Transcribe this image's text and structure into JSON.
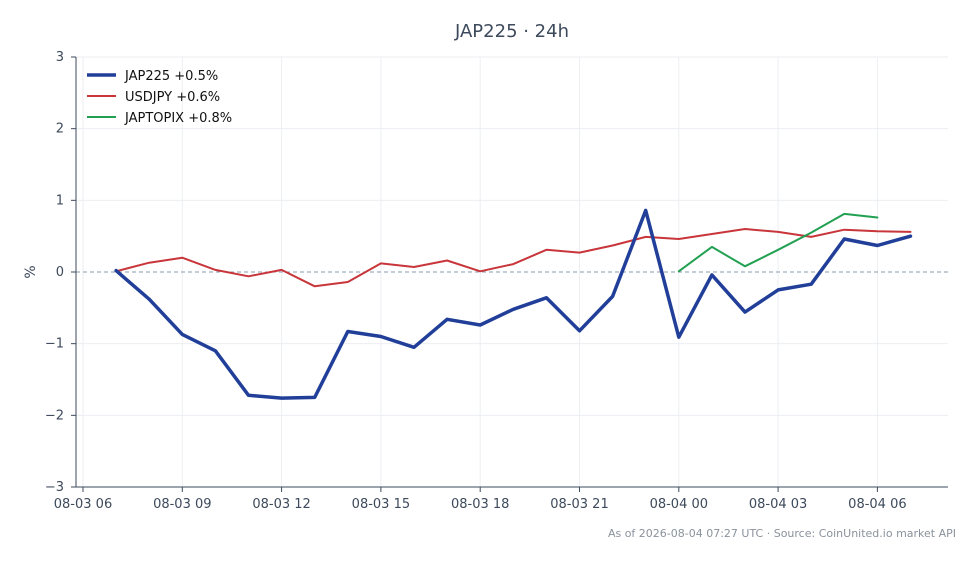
{
  "chart_data": {
    "type": "line",
    "title": "JAP225 · 24h",
    "xlabel": "",
    "ylabel": "%",
    "ylim": [
      -3,
      3
    ],
    "yticks": [
      "3",
      "2",
      "1",
      "0",
      "−1",
      "−2",
      "−3"
    ],
    "ytick_values": [
      3,
      2,
      1,
      0,
      -1,
      -2,
      -3
    ],
    "xlim": [
      "08-03 06",
      "08-04 08"
    ],
    "xticks": [
      "08-03 06",
      "08-03 09",
      "08-03 12",
      "08-03 15",
      "08-03 18",
      "08-03 21",
      "08-04 00",
      "08-04 03",
      "08-04 06"
    ],
    "xtick_hours": [
      0,
      3,
      6,
      9,
      12,
      15,
      18,
      21,
      24
    ],
    "grid": true,
    "zero_line": true,
    "legend_position": "top-left",
    "series": [
      {
        "name": "JAP225 +0.5%",
        "color": "#213f99",
        "x": [
          "08-03 07",
          "08-03 08",
          "08-03 09",
          "08-03 10",
          "08-03 11",
          "08-03 12",
          "08-03 13",
          "08-03 14",
          "08-03 15",
          "08-03 16",
          "08-03 17",
          "08-03 18",
          "08-03 19",
          "08-03 20",
          "08-03 21",
          "08-03 22",
          "08-03 23",
          "08-04 00",
          "08-04 01",
          "08-04 02",
          "08-04 03",
          "08-04 04",
          "08-04 05",
          "08-04 06",
          "08-04 07"
        ],
        "x_hours": [
          1,
          2,
          3,
          4,
          5,
          6,
          7,
          8,
          9,
          10,
          11,
          12,
          13,
          14,
          15,
          16,
          17,
          18,
          19,
          20,
          21,
          22,
          23,
          24,
          25
        ],
        "values": [
          0.02,
          -0.38,
          -0.87,
          -1.1,
          -1.72,
          -1.76,
          -1.75,
          -0.83,
          -0.9,
          -1.05,
          -0.66,
          -0.74,
          -0.52,
          -0.36,
          -0.82,
          -0.34,
          0.86,
          -0.91,
          -0.04,
          -0.56,
          -0.25,
          -0.17,
          0.46,
          0.37,
          0.5
        ]
      },
      {
        "name": "USDJPY +0.6%",
        "color": "#c8353a",
        "x": [
          "08-03 07",
          "08-03 08",
          "08-03 09",
          "08-03 10",
          "08-03 11",
          "08-03 12",
          "08-03 13",
          "08-03 14",
          "08-03 15",
          "08-03 16",
          "08-03 17",
          "08-03 18",
          "08-03 19",
          "08-03 20",
          "08-03 21",
          "08-03 22",
          "08-03 23",
          "08-04 00",
          "08-04 01",
          "08-04 02",
          "08-04 03",
          "08-04 04",
          "08-04 05",
          "08-04 06",
          "08-04 07"
        ],
        "x_hours": [
          1,
          2,
          3,
          4,
          5,
          6,
          7,
          8,
          9,
          10,
          11,
          12,
          13,
          14,
          15,
          16,
          17,
          18,
          19,
          20,
          21,
          22,
          23,
          24,
          25
        ],
        "values": [
          0.01,
          0.13,
          0.2,
          0.03,
          -0.06,
          0.03,
          -0.2,
          -0.14,
          0.12,
          0.07,
          0.16,
          0.01,
          0.11,
          0.31,
          0.27,
          0.37,
          0.49,
          0.46,
          0.53,
          0.6,
          0.56,
          0.49,
          0.59,
          0.57,
          0.56
        ]
      },
      {
        "name": "JAPTOPIX +0.8%",
        "color": "#22a052",
        "x": [
          "08-04 00",
          "08-04 01",
          "08-04 02",
          "08-04 03",
          "08-04 04",
          "08-04 05",
          "08-04 06"
        ],
        "x_hours": [
          18,
          19,
          20,
          21,
          22,
          23,
          24
        ],
        "values": [
          0.01,
          0.35,
          0.08,
          0.31,
          0.55,
          0.81,
          0.76
        ]
      }
    ]
  },
  "footer": "As of 2026-08-04 07:27 UTC · Source: CoinUnited.io market API"
}
